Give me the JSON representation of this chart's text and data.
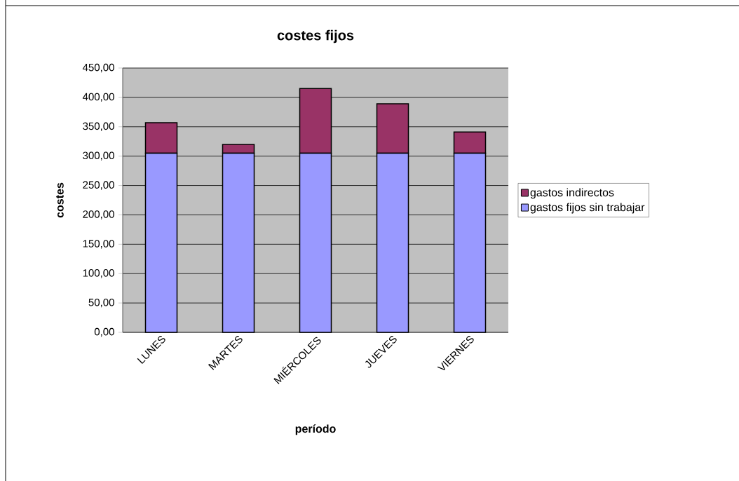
{
  "chart_data": {
    "type": "bar",
    "stacked": true,
    "title": "costes fijos",
    "xlabel": "período",
    "ylabel": "costes",
    "categories": [
      "LUNES",
      "MARTES",
      "MIÉRCOLES",
      "JUEVES",
      "VIERNES"
    ],
    "series": [
      {
        "name": "gastos fijos sin trabajar",
        "color": "#9999ff",
        "values": [
          305,
          305,
          305,
          305,
          305
        ]
      },
      {
        "name": "gastos indirectos",
        "color": "#993366",
        "values": [
          52,
          15,
          110,
          84,
          36
        ]
      }
    ],
    "ylim": [
      0,
      450
    ],
    "yticks": [
      {
        "value": 0,
        "label": "0,00"
      },
      {
        "value": 50,
        "label": "50,00"
      },
      {
        "value": 100,
        "label": "100,00"
      },
      {
        "value": 150,
        "label": "150,00"
      },
      {
        "value": 200,
        "label": "200,00"
      },
      {
        "value": 250,
        "label": "250,00"
      },
      {
        "value": 300,
        "label": "300,00"
      },
      {
        "value": 350,
        "label": "350,00"
      },
      {
        "value": 400,
        "label": "400,00"
      },
      {
        "value": 450,
        "label": "450,00"
      }
    ],
    "grid": "y",
    "legend": "right"
  }
}
